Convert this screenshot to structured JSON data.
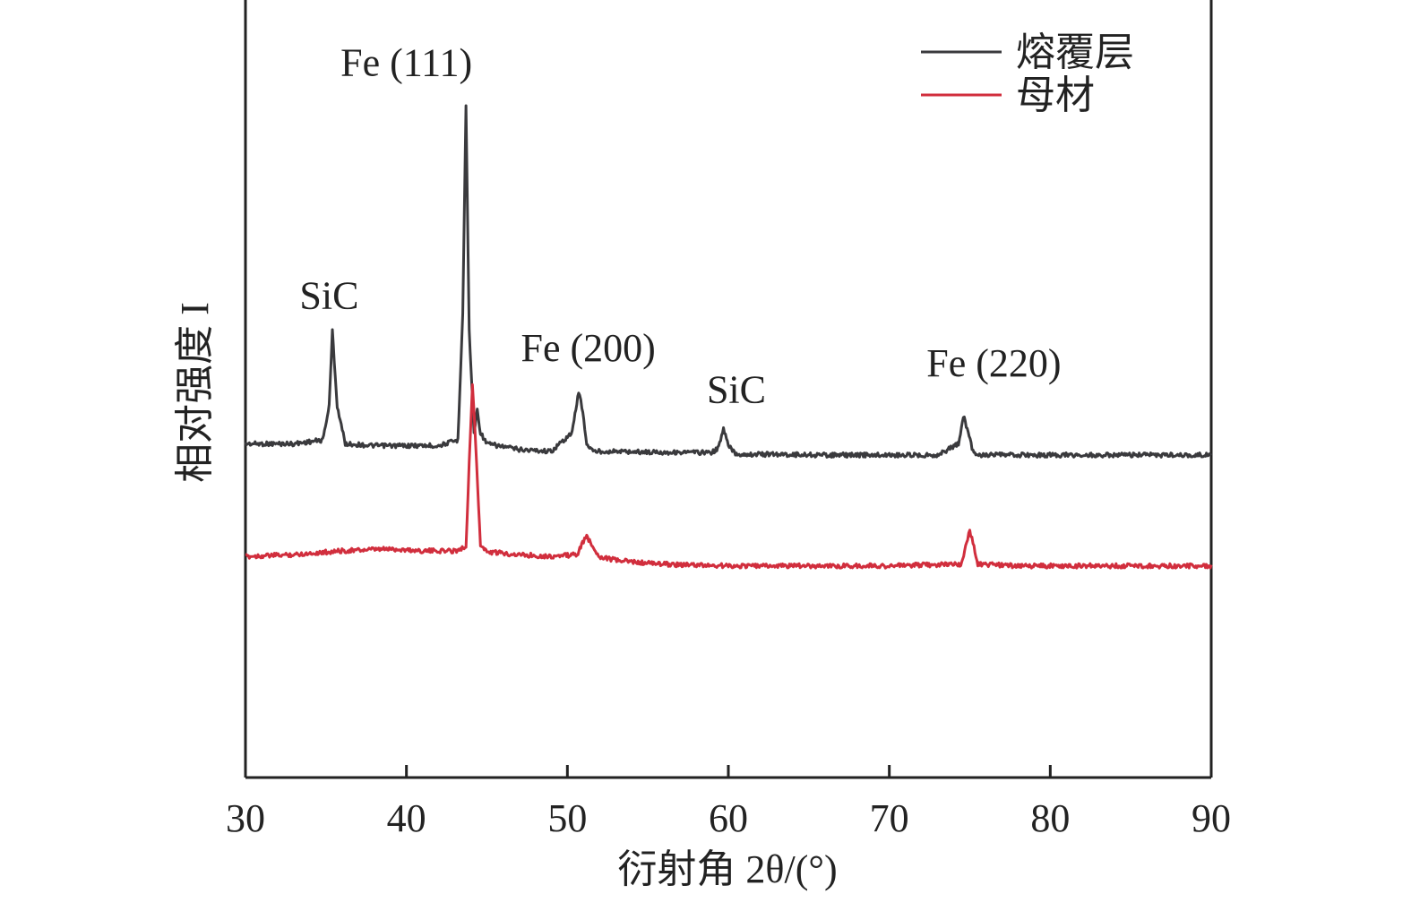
{
  "chart_data": {
    "type": "line",
    "xlabel": "衍射角 2θ/(°)",
    "ylabel": "相对强度 I",
    "xlim": [
      30,
      90
    ],
    "xticks": [
      "30",
      "40",
      "50",
      "60",
      "70",
      "80",
      "90"
    ],
    "yticks": [],
    "grid": false,
    "legend_position": "top-right",
    "series": [
      {
        "name": "熔覆层",
        "color": "#3a3a3d",
        "x": [
          30,
          33,
          34.8,
          35.2,
          35.4,
          35.7,
          36.2,
          38,
          40,
          42,
          43.2,
          43.5,
          43.7,
          43.9,
          44.2,
          44.4,
          44.6,
          45,
          47,
          49,
          50.3,
          50.7,
          50.9,
          51.2,
          51.6,
          53,
          55,
          57,
          59,
          59.4,
          59.7,
          60,
          60.5,
          63,
          66,
          70,
          73,
          74.3,
          74.6,
          74.9,
          75.2,
          75.6,
          78,
          82,
          86,
          90
        ],
        "y": [
          3.0,
          3.0,
          3.1,
          4.0,
          6.0,
          4.0,
          3.0,
          2.95,
          2.95,
          2.95,
          3.1,
          6.5,
          12.0,
          6.0,
          3.3,
          3.9,
          3.3,
          3.0,
          2.85,
          2.8,
          3.3,
          4.4,
          4.0,
          3.0,
          2.8,
          2.8,
          2.78,
          2.77,
          2.77,
          2.9,
          3.4,
          2.95,
          2.72,
          2.72,
          2.7,
          2.7,
          2.7,
          3.0,
          3.75,
          3.3,
          2.8,
          2.7,
          2.7,
          2.7,
          2.7,
          2.7
        ]
      },
      {
        "name": "母材",
        "color": "#d12e3d",
        "x": [
          30,
          33,
          36,
          39,
          41,
          43,
          43.7,
          43.9,
          44.1,
          44.3,
          44.6,
          45,
          47,
          49,
          50.6,
          51.0,
          51.2,
          51.5,
          52,
          53,
          55,
          57,
          60,
          65,
          70,
          74.5,
          74.8,
          75.0,
          75.2,
          75.5,
          78,
          82,
          86,
          90
        ],
        "y": [
          0.0,
          0.05,
          0.15,
          0.2,
          0.15,
          0.15,
          0.25,
          2.5,
          4.6,
          3.0,
          0.3,
          0.12,
          0.05,
          0.0,
          0.05,
          0.4,
          0.55,
          0.3,
          0.0,
          -0.1,
          -0.18,
          -0.22,
          -0.25,
          -0.25,
          -0.25,
          -0.2,
          0.4,
          0.65,
          0.4,
          -0.2,
          -0.25,
          -0.25,
          -0.25,
          -0.25
        ]
      }
    ],
    "annotations": [
      {
        "label": "SiC",
        "x": 35.2,
        "y": 6.6
      },
      {
        "label": "Fe (111)",
        "x": 40.0,
        "y": 12.8
      },
      {
        "label": "Fe (200)",
        "x": 51.3,
        "y": 5.2
      },
      {
        "label": "SiC",
        "x": 60.5,
        "y": 4.1
      },
      {
        "label": "Fe (220)",
        "x": 76.5,
        "y": 4.8
      }
    ]
  }
}
